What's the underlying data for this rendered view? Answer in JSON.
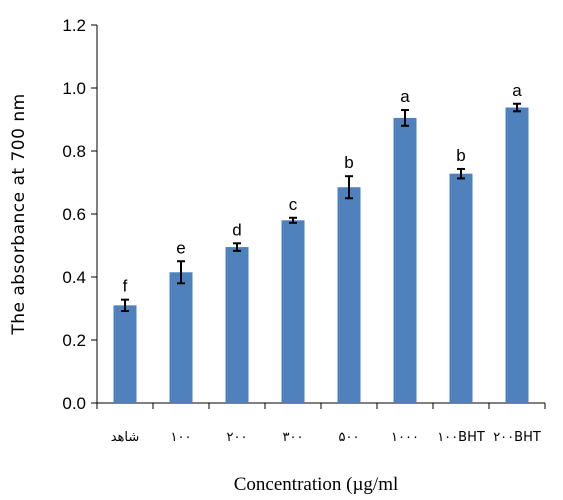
{
  "chart_data": {
    "type": "bar",
    "title": "",
    "xlabel": "Concentration (µg/ml",
    "ylabel": "The absorbance at 700 nm",
    "ylim": [
      0,
      1.2
    ],
    "yticks": [
      "0.0",
      "0.2",
      "0.4",
      "0.6",
      "0.8",
      "1.0",
      "1.2"
    ],
    "grid": false,
    "categories": [
      "شاهد",
      "۱۰۰",
      "۲۰۰",
      "۳۰۰",
      "۵۰۰",
      "۱۰۰۰",
      "۱۰۰BHT",
      "۲۰۰BHT"
    ],
    "values": [
      0.31,
      0.415,
      0.495,
      0.58,
      0.685,
      0.905,
      0.728,
      0.938
    ],
    "errors": [
      0.018,
      0.035,
      0.012,
      0.008,
      0.035,
      0.025,
      0.015,
      0.012
    ],
    "letters": [
      "f",
      "e",
      "d",
      "c",
      "b",
      "a",
      "b",
      "a"
    ],
    "bar_color": "#4f81bd",
    "error_color": "#000000"
  }
}
